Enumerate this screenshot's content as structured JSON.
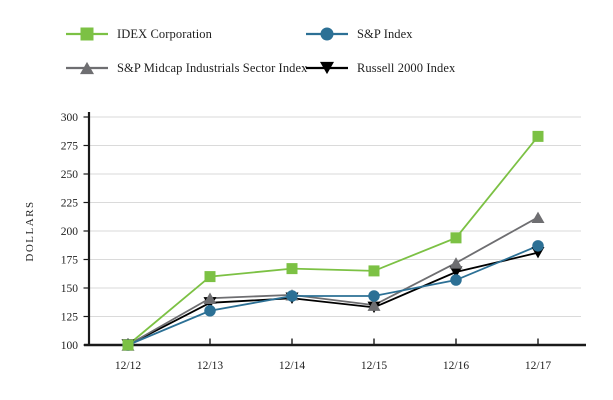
{
  "legend": {
    "items": [
      {
        "label": "IDEX Corporation",
        "marker": "square",
        "color": "#7CC144"
      },
      {
        "label": "S&P Index",
        "marker": "circle",
        "color": "#2C7095"
      },
      {
        "label": "S&P Midcap Industrials Sector Index",
        "marker": "triangle-up",
        "color": "#6E6E71"
      },
      {
        "label": "Russell 2000 Index",
        "marker": "triangle-down",
        "color": "#000000"
      }
    ]
  },
  "chart_data": {
    "type": "line",
    "categories": [
      "12/12",
      "12/13",
      "12/14",
      "12/15",
      "12/16",
      "12/17"
    ],
    "series": [
      {
        "name": "IDEX Corporation",
        "marker": "square",
        "color": "#7CC144",
        "values": [
          100,
          160,
          167,
          165,
          194,
          283
        ]
      },
      {
        "name": "S&P Index",
        "marker": "circle",
        "color": "#2C7095",
        "values": [
          100,
          130,
          143,
          143,
          157,
          187
        ]
      },
      {
        "name": "S&P Midcap Industrials Sector Index",
        "marker": "triangle-up",
        "color": "#6E6E71",
        "values": [
          100,
          141,
          144,
          135,
          172,
          212
        ]
      },
      {
        "name": "Russell 2000 Index",
        "marker": "triangle-down",
        "color": "#000000",
        "values": [
          100,
          137,
          141,
          133,
          164,
          181
        ]
      }
    ],
    "title": "",
    "xlabel": "",
    "ylabel": "DOLLARS",
    "ylim": [
      100,
      300
    ],
    "ytick_step": 25,
    "yticks": [
      100,
      125,
      150,
      175,
      200,
      225,
      250,
      275,
      300
    ],
    "grid": true,
    "legend_position": "top"
  },
  "colors": {
    "grid": "#DADADA",
    "axis": "#1a1a1a",
    "background": "#FFFFFF"
  }
}
